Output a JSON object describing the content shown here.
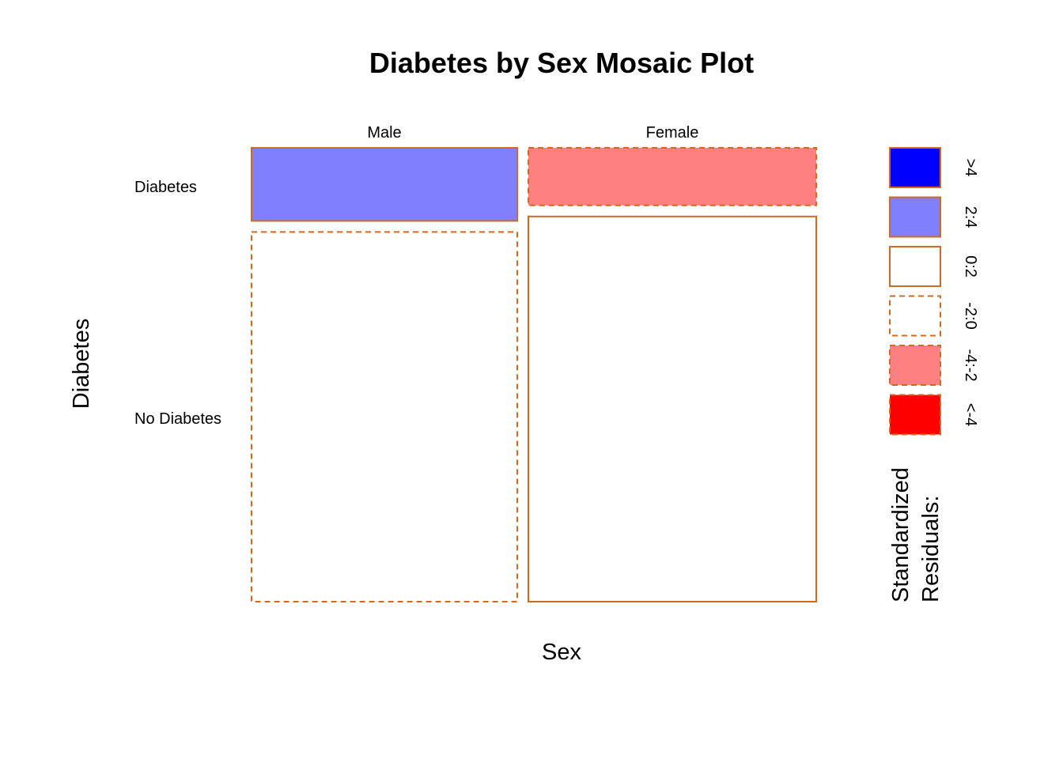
{
  "chart_data": {
    "type": "mosaic",
    "title": "Diabetes by Sex Mosaic Plot",
    "xlabel": "Sex",
    "ylabel": "Diabetes",
    "columns": [
      "Male",
      "Female"
    ],
    "rows": [
      "Diabetes",
      "No Diabetes"
    ],
    "column_proportions": [
      0.48,
      0.52
    ],
    "row_proportions_within_column": {
      "Male": [
        0.165,
        0.835
      ],
      "Female": [
        0.13,
        0.87
      ]
    },
    "cells": [
      {
        "sex": "Male",
        "diabetes": "Diabetes",
        "residual_band": "2:4"
      },
      {
        "sex": "Male",
        "diabetes": "No Diabetes",
        "residual_band": "-2:0"
      },
      {
        "sex": "Female",
        "diabetes": "Diabetes",
        "residual_band": "-4:-2"
      },
      {
        "sex": "Female",
        "diabetes": "No Diabetes",
        "residual_band": "0:2"
      }
    ],
    "legend": {
      "title_lines": [
        "Standardized",
        "Residuals:"
      ],
      "placement": "right",
      "entries": [
        {
          "label": ">4",
          "fill": "#0000ff",
          "dashed": false
        },
        {
          "label": "2:4",
          "fill": "#8080ff",
          "dashed": false
        },
        {
          "label": "0:2",
          "fill": "#ffffff",
          "dashed": false
        },
        {
          "label": "-2:0",
          "fill": "#ffffff",
          "dashed": true
        },
        {
          "label": "-4:-2",
          "fill": "#ff8080",
          "dashed": true
        },
        {
          "label": "<-4",
          "fill": "#ff0000",
          "dashed": true
        }
      ]
    },
    "border_color": "#d2691e"
  }
}
